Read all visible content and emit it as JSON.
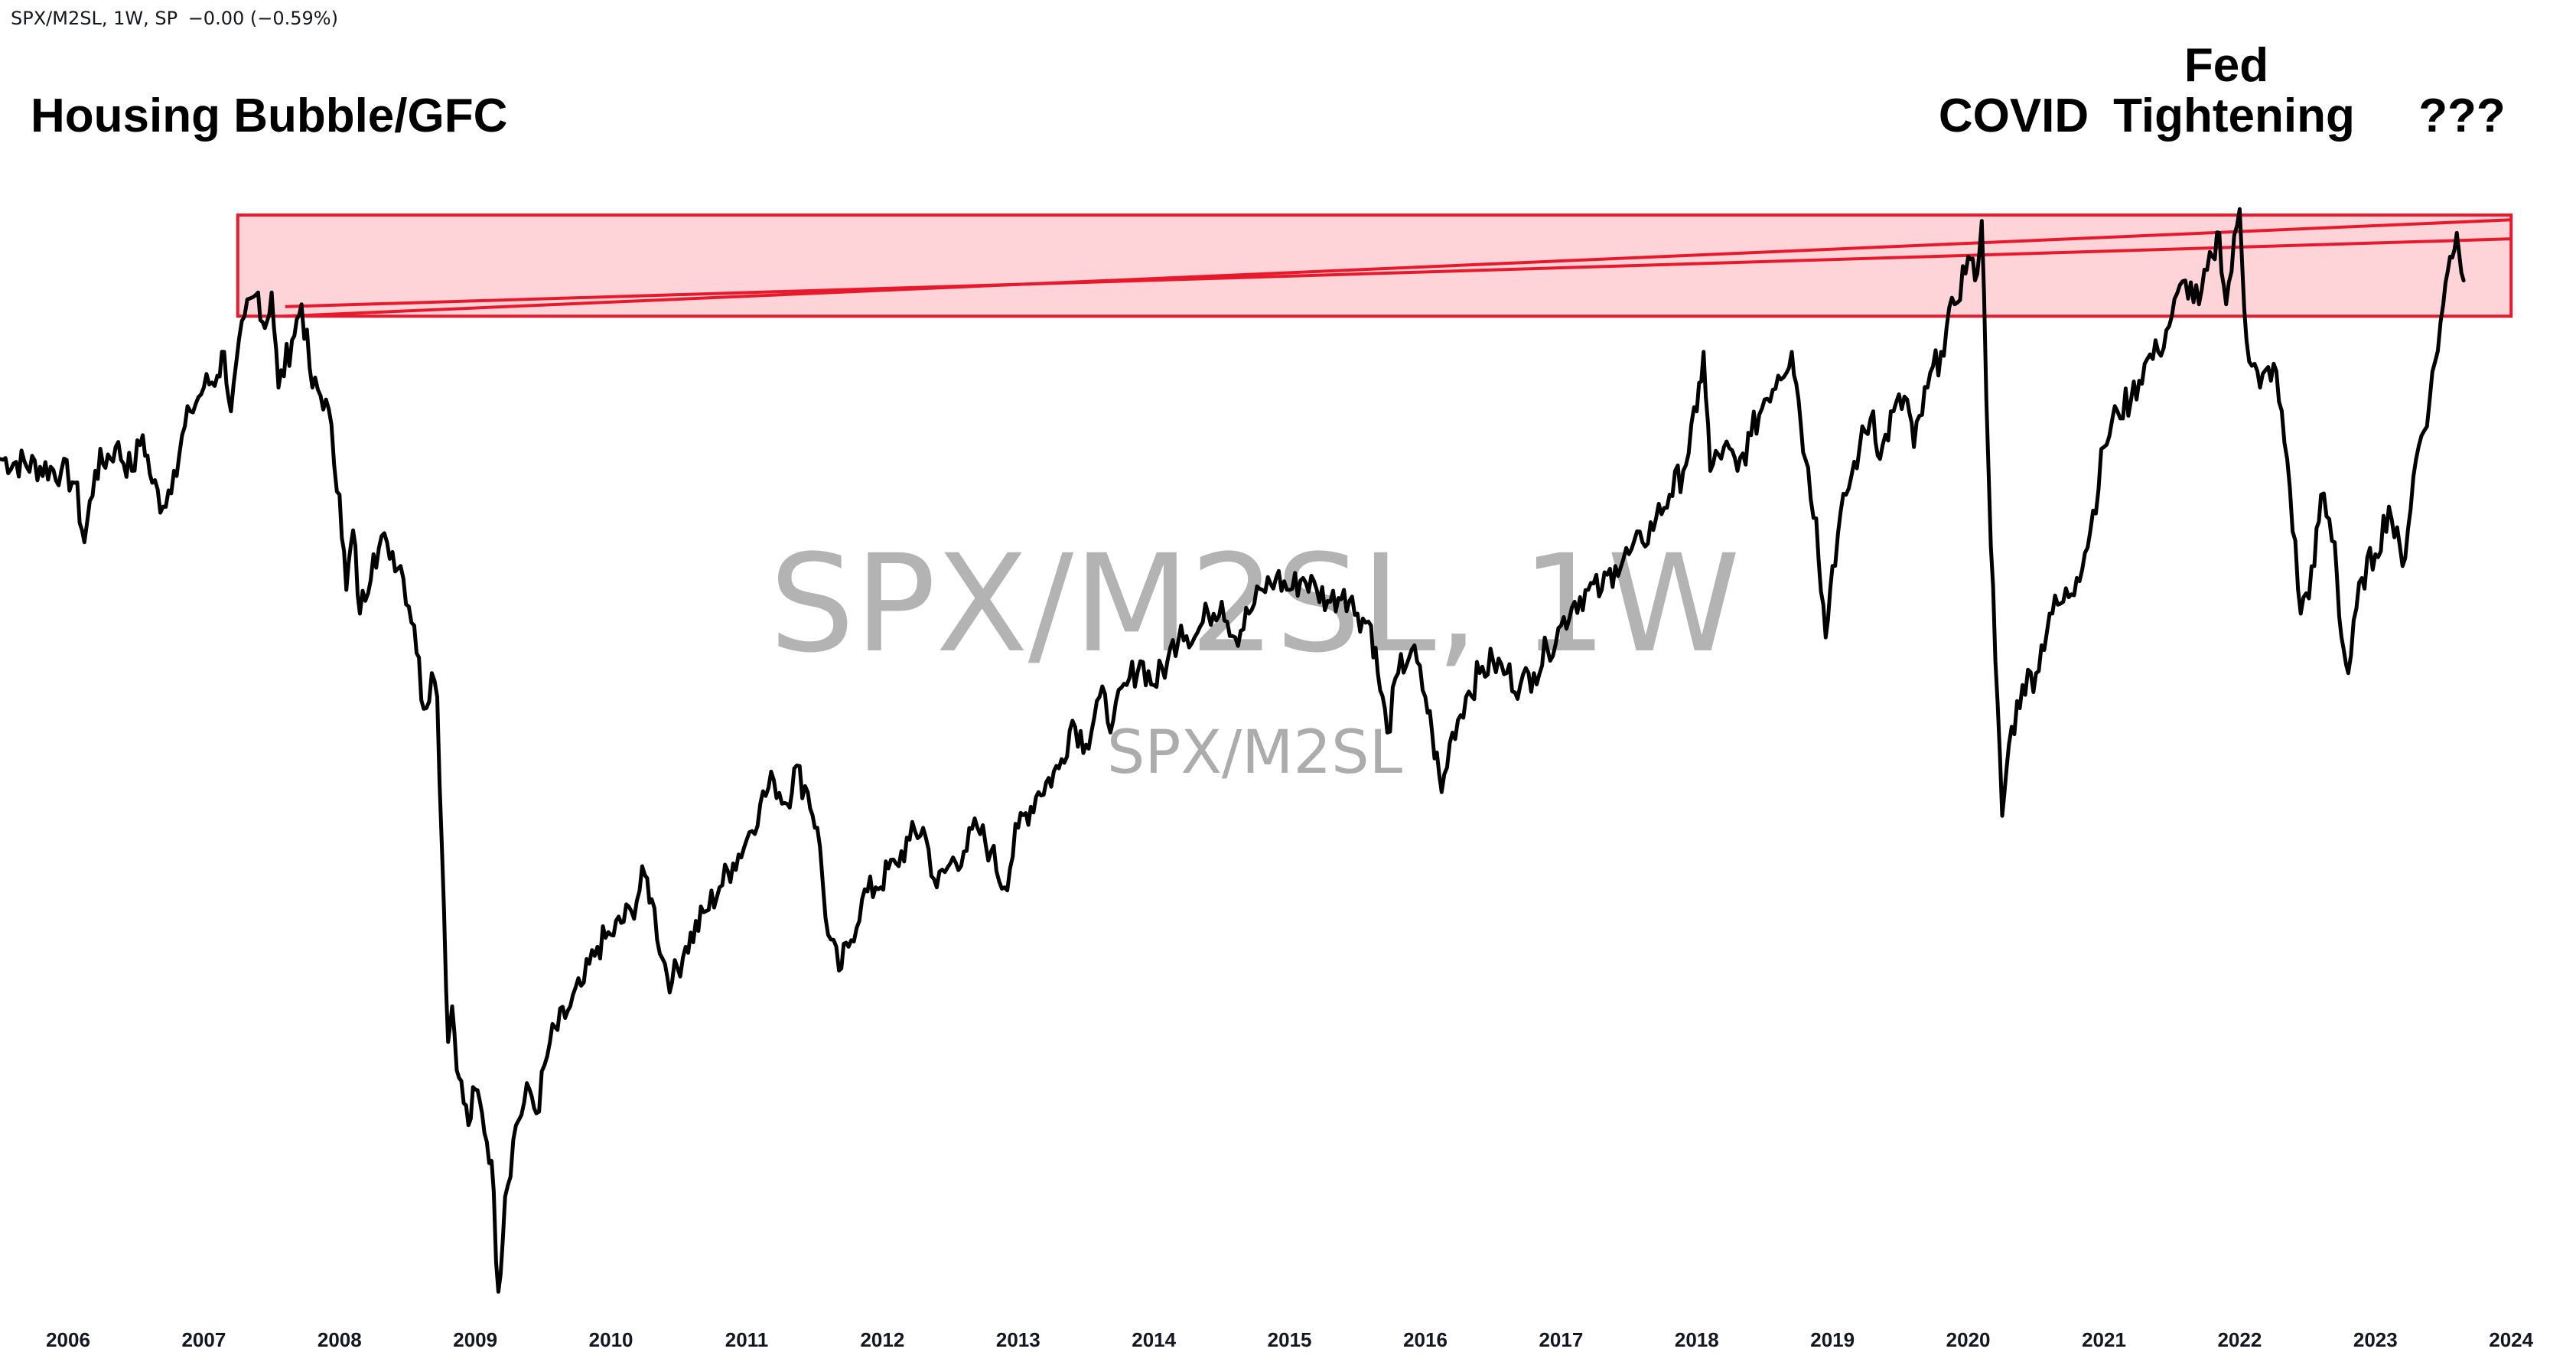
{
  "header": {
    "symbol": "SPX/M2SL, 1W, SP",
    "change": "−0.00 (−0.59%)"
  },
  "watermark": {
    "title": "SPX/M2SL, 1W",
    "subtitle": "SPX/M2SL"
  },
  "annotations": {
    "gfc": "Housing Bubble/GFC",
    "covid": "COVID",
    "fed_line1": "Fed",
    "fed_line2": "Tightening",
    "unknown": "???"
  },
  "colors": {
    "line": "#000000",
    "zone_fill": "#ffd4d8",
    "zone_stroke": "#e8192c",
    "watermark": "#9e9e9e",
    "background": "#ffffff"
  },
  "chart_data": {
    "type": "line",
    "title": "SPX/M2SL, 1W",
    "xlabel": "",
    "ylabel": "",
    "xlim": [
      2006.0,
      2024.0
    ],
    "ylim": [
      0.0,
      1.0
    ],
    "grid": false,
    "x_ticks": [
      "2006",
      "2007",
      "2008",
      "2009",
      "2010",
      "2011",
      "2012",
      "2013",
      "2014",
      "2015",
      "2016",
      "2017",
      "2018",
      "2019",
      "2020",
      "2021",
      "2022",
      "2023",
      "2024"
    ],
    "series": [
      {
        "name": "SPX/M2SL",
        "points": [
          [
            2005.5,
            0.73
          ],
          [
            2005.95,
            0.72
          ],
          [
            2006.05,
            0.71
          ],
          [
            2006.12,
            0.66
          ],
          [
            2006.2,
            0.72
          ],
          [
            2006.35,
            0.74
          ],
          [
            2006.47,
            0.72
          ],
          [
            2006.55,
            0.75
          ],
          [
            2006.62,
            0.71
          ],
          [
            2006.7,
            0.69
          ],
          [
            2006.78,
            0.72
          ],
          [
            2006.9,
            0.77
          ],
          [
            2007.0,
            0.79
          ],
          [
            2007.1,
            0.8
          ],
          [
            2007.15,
            0.82
          ],
          [
            2007.2,
            0.77
          ],
          [
            2007.3,
            0.85
          ],
          [
            2007.4,
            0.87
          ],
          [
            2007.45,
            0.84
          ],
          [
            2007.5,
            0.87
          ],
          [
            2007.55,
            0.79
          ],
          [
            2007.65,
            0.83
          ],
          [
            2007.72,
            0.86
          ],
          [
            2007.8,
            0.79
          ],
          [
            2007.9,
            0.78
          ],
          [
            2008.0,
            0.7
          ],
          [
            2008.05,
            0.62
          ],
          [
            2008.1,
            0.67
          ],
          [
            2008.15,
            0.6
          ],
          [
            2008.25,
            0.65
          ],
          [
            2008.35,
            0.66
          ],
          [
            2008.45,
            0.64
          ],
          [
            2008.55,
            0.59
          ],
          [
            2008.62,
            0.52
          ],
          [
            2008.68,
            0.55
          ],
          [
            2008.72,
            0.53
          ],
          [
            2008.77,
            0.35
          ],
          [
            2008.8,
            0.24
          ],
          [
            2008.83,
            0.27
          ],
          [
            2008.88,
            0.21
          ],
          [
            2008.95,
            0.17
          ],
          [
            2009.0,
            0.2
          ],
          [
            2009.05,
            0.18
          ],
          [
            2009.12,
            0.14
          ],
          [
            2009.17,
            0.03
          ],
          [
            2009.22,
            0.11
          ],
          [
            2009.3,
            0.17
          ],
          [
            2009.4,
            0.2
          ],
          [
            2009.45,
            0.18
          ],
          [
            2009.55,
            0.24
          ],
          [
            2009.7,
            0.27
          ],
          [
            2009.8,
            0.29
          ],
          [
            2009.9,
            0.32
          ],
          [
            2010.0,
            0.33
          ],
          [
            2010.15,
            0.35
          ],
          [
            2010.25,
            0.38
          ],
          [
            2010.3,
            0.36
          ],
          [
            2010.38,
            0.31
          ],
          [
            2010.45,
            0.29
          ],
          [
            2010.55,
            0.32
          ],
          [
            2010.7,
            0.35
          ],
          [
            2010.8,
            0.37
          ],
          [
            2010.9,
            0.39
          ],
          [
            2011.0,
            0.41
          ],
          [
            2011.1,
            0.44
          ],
          [
            2011.2,
            0.46
          ],
          [
            2011.3,
            0.44
          ],
          [
            2011.35,
            0.47
          ],
          [
            2011.45,
            0.45
          ],
          [
            2011.52,
            0.42
          ],
          [
            2011.6,
            0.33
          ],
          [
            2011.68,
            0.3
          ],
          [
            2011.75,
            0.32
          ],
          [
            2011.85,
            0.36
          ],
          [
            2011.95,
            0.37
          ],
          [
            2012.1,
            0.39
          ],
          [
            2012.2,
            0.41
          ],
          [
            2012.3,
            0.42
          ],
          [
            2012.4,
            0.37
          ],
          [
            2012.5,
            0.39
          ],
          [
            2012.6,
            0.4
          ],
          [
            2012.7,
            0.42
          ],
          [
            2012.8,
            0.4
          ],
          [
            2012.9,
            0.37
          ],
          [
            2013.0,
            0.42
          ],
          [
            2013.15,
            0.45
          ],
          [
            2013.3,
            0.47
          ],
          [
            2013.4,
            0.51
          ],
          [
            2013.5,
            0.49
          ],
          [
            2013.6,
            0.53
          ],
          [
            2013.7,
            0.51
          ],
          [
            2013.8,
            0.54
          ],
          [
            2013.9,
            0.56
          ],
          [
            2014.0,
            0.54
          ],
          [
            2014.1,
            0.56
          ],
          [
            2014.2,
            0.59
          ],
          [
            2014.3,
            0.58
          ],
          [
            2014.4,
            0.6
          ],
          [
            2014.5,
            0.61
          ],
          [
            2014.6,
            0.58
          ],
          [
            2014.7,
            0.6
          ],
          [
            2014.8,
            0.62
          ],
          [
            2014.9,
            0.63
          ],
          [
            2015.0,
            0.62
          ],
          [
            2015.1,
            0.63
          ],
          [
            2015.2,
            0.62
          ],
          [
            2015.3,
            0.61
          ],
          [
            2015.4,
            0.62
          ],
          [
            2015.5,
            0.6
          ],
          [
            2015.6,
            0.59
          ],
          [
            2015.65,
            0.55
          ],
          [
            2015.72,
            0.5
          ],
          [
            2015.8,
            0.55
          ],
          [
            2015.9,
            0.57
          ],
          [
            2016.0,
            0.53
          ],
          [
            2016.05,
            0.5
          ],
          [
            2016.12,
            0.45
          ],
          [
            2016.2,
            0.5
          ],
          [
            2016.3,
            0.53
          ],
          [
            2016.4,
            0.55
          ],
          [
            2016.5,
            0.56
          ],
          [
            2016.6,
            0.55
          ],
          [
            2016.7,
            0.54
          ],
          [
            2016.8,
            0.55
          ],
          [
            2016.9,
            0.57
          ],
          [
            2017.0,
            0.59
          ],
          [
            2017.1,
            0.61
          ],
          [
            2017.2,
            0.62
          ],
          [
            2017.3,
            0.62
          ],
          [
            2017.4,
            0.64
          ],
          [
            2017.5,
            0.65
          ],
          [
            2017.6,
            0.66
          ],
          [
            2017.7,
            0.68
          ],
          [
            2017.8,
            0.7
          ],
          [
            2017.9,
            0.72
          ],
          [
            2018.0,
            0.77
          ],
          [
            2018.05,
            0.82
          ],
          [
            2018.1,
            0.72
          ],
          [
            2018.2,
            0.74
          ],
          [
            2018.3,
            0.72
          ],
          [
            2018.4,
            0.75
          ],
          [
            2018.5,
            0.78
          ],
          [
            2018.6,
            0.8
          ],
          [
            2018.7,
            0.82
          ],
          [
            2018.75,
            0.78
          ],
          [
            2018.8,
            0.73
          ],
          [
            2018.88,
            0.68
          ],
          [
            2018.95,
            0.58
          ],
          [
            2019.0,
            0.64
          ],
          [
            2019.1,
            0.7
          ],
          [
            2019.2,
            0.74
          ],
          [
            2019.3,
            0.77
          ],
          [
            2019.35,
            0.73
          ],
          [
            2019.45,
            0.77
          ],
          [
            2019.55,
            0.78
          ],
          [
            2019.6,
            0.74
          ],
          [
            2019.7,
            0.79
          ],
          [
            2019.8,
            0.82
          ],
          [
            2019.9,
            0.86
          ],
          [
            2020.0,
            0.9
          ],
          [
            2020.05,
            0.88
          ],
          [
            2020.1,
            0.93
          ],
          [
            2020.15,
            0.72
          ],
          [
            2020.2,
            0.56
          ],
          [
            2020.25,
            0.43
          ],
          [
            2020.3,
            0.49
          ],
          [
            2020.4,
            0.54
          ],
          [
            2020.5,
            0.55
          ],
          [
            2020.6,
            0.6
          ],
          [
            2020.7,
            0.61
          ],
          [
            2020.8,
            0.63
          ],
          [
            2020.9,
            0.67
          ],
          [
            2021.0,
            0.74
          ],
          [
            2021.1,
            0.77
          ],
          [
            2021.2,
            0.78
          ],
          [
            2021.3,
            0.81
          ],
          [
            2021.4,
            0.82
          ],
          [
            2021.5,
            0.85
          ],
          [
            2021.6,
            0.88
          ],
          [
            2021.7,
            0.86
          ],
          [
            2021.8,
            0.9
          ],
          [
            2021.85,
            0.92
          ],
          [
            2021.9,
            0.86
          ],
          [
            2022.0,
            0.94
          ],
          [
            2022.05,
            0.83
          ],
          [
            2022.15,
            0.79
          ],
          [
            2022.25,
            0.81
          ],
          [
            2022.35,
            0.73
          ],
          [
            2022.45,
            0.6
          ],
          [
            2022.55,
            0.64
          ],
          [
            2022.6,
            0.7
          ],
          [
            2022.7,
            0.66
          ],
          [
            2022.75,
            0.58
          ],
          [
            2022.8,
            0.55
          ],
          [
            2022.9,
            0.63
          ],
          [
            2023.0,
            0.65
          ],
          [
            2023.1,
            0.69
          ],
          [
            2023.2,
            0.64
          ],
          [
            2023.3,
            0.73
          ],
          [
            2023.4,
            0.78
          ],
          [
            2023.5,
            0.86
          ],
          [
            2023.55,
            0.9
          ],
          [
            2023.6,
            0.92
          ],
          [
            2023.65,
            0.88
          ]
        ]
      }
    ],
    "zone": {
      "x": [
        2007.25,
        2024.0
      ],
      "y": [
        0.85,
        0.935
      ]
    },
    "trendlines": [
      {
        "from": [
          2007.6,
          0.85
        ],
        "to": [
          2024.0,
          0.931
        ]
      },
      {
        "from": [
          2007.6,
          0.858
        ],
        "to": [
          2024.0,
          0.915
        ]
      }
    ]
  }
}
